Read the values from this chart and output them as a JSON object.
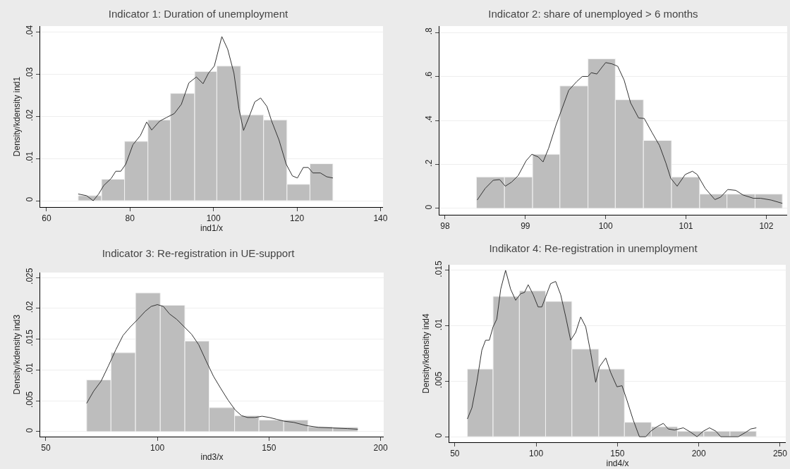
{
  "chart_data": [
    {
      "type": "histogram",
      "title": "Indicator 1: Duration of unemployment",
      "xlabel": "ind1/x",
      "ylabel": "Density/kdensity ind1",
      "color": "#bdbdbd",
      "grid": "y",
      "bins": [
        67.6,
        73.2,
        78.7,
        84.3,
        89.7,
        95.5,
        100.8,
        106.5,
        112.0,
        117.6,
        123.1,
        128.6
      ],
      "values": [
        0.0012,
        0.0051,
        0.0141,
        0.0192,
        0.0255,
        0.0307,
        0.032,
        0.0204,
        0.0192,
        0.0039,
        0.0088
      ],
      "series": [
        {
          "type": "line",
          "color": "#333333",
          "x": [
            67.6,
            69.6,
            71.2,
            72.5,
            73.7,
            75.5,
            76.6,
            77.8,
            79.0,
            80.7,
            82.5,
            84.0,
            85.2,
            87.1,
            88.8,
            90.6,
            92.3,
            94.1,
            95.9,
            97.5,
            98.8,
            100.2,
            102.0,
            103.4,
            104.9,
            106.1,
            107.2,
            108.4,
            109.9,
            111.3,
            112.8,
            113.9,
            115.7,
            117.4,
            118.9,
            120.1,
            121.5,
            122.7,
            123.8,
            125.6,
            127.1,
            128.6
          ],
          "values": [
            0.0016,
            0.0012,
            0,
            0.0016,
            0.0036,
            0.0053,
            0.007,
            0.007,
            0.0087,
            0.0133,
            0.0155,
            0.0187,
            0.0168,
            0.0189,
            0.0198,
            0.0207,
            0.0229,
            0.028,
            0.0294,
            0.0278,
            0.0303,
            0.032,
            0.039,
            0.036,
            0.0303,
            0.0218,
            0.0167,
            0.0196,
            0.0235,
            0.0244,
            0.0224,
            0.019,
            0.0144,
            0.0087,
            0.0059,
            0.0054,
            0.0079,
            0.0079,
            0.0066,
            0.0066,
            0.0057,
            0.0054
          ]
        }
      ],
      "xlim": [
        58.5,
        140.6
      ],
      "xticks": [
        60,
        80,
        100,
        120,
        140
      ],
      "ylim": [
        -0.0015,
        0.0415
      ],
      "yticks": [
        {
          "value": 0,
          "label": "0"
        },
        {
          "value": 0.01,
          "label": ".01"
        },
        {
          "value": 0.02,
          "label": ".02"
        },
        {
          "value": 0.03,
          "label": ".03"
        },
        {
          "value": 0.04,
          "label": ".04"
        }
      ]
    },
    {
      "type": "histogram",
      "title": "Indicator 2: share of unemployed > 6 months",
      "color": "#bdbdbd",
      "grid": "y",
      "bins": [
        98.39,
        98.74,
        99.09,
        99.43,
        99.78,
        100.12,
        100.47,
        100.82,
        101.17,
        101.51,
        101.86,
        102.2
      ],
      "values": [
        0.143,
        0.143,
        0.246,
        0.557,
        0.68,
        0.494,
        0.309,
        0.143,
        0.065,
        0.065,
        0.065
      ],
      "series": [
        {
          "type": "line",
          "color": "#333333",
          "x": [
            98.4,
            98.5,
            98.6,
            98.68,
            98.75,
            98.83,
            98.91,
            99.01,
            99.08,
            99.16,
            99.22,
            99.29,
            99.38,
            99.46,
            99.54,
            99.64,
            99.71,
            99.78,
            99.82,
            99.89,
            99.95,
            100.0,
            100.08,
            100.15,
            100.23,
            100.31,
            100.41,
            100.48,
            100.58,
            100.67,
            100.75,
            100.81,
            100.89,
            100.99,
            101.08,
            101.14,
            101.24,
            101.36,
            101.43,
            101.52,
            101.62,
            101.71,
            101.84,
            101.93,
            102.06,
            102.2
          ],
          "values": [
            0.038,
            0.091,
            0.128,
            0.131,
            0.101,
            0.12,
            0.149,
            0.217,
            0.246,
            0.234,
            0.211,
            0.274,
            0.377,
            0.457,
            0.537,
            0.577,
            0.6,
            0.6,
            0.617,
            0.611,
            0.64,
            0.663,
            0.657,
            0.646,
            0.583,
            0.48,
            0.411,
            0.409,
            0.343,
            0.286,
            0.206,
            0.137,
            0.101,
            0.154,
            0.169,
            0.154,
            0.091,
            0.04,
            0.051,
            0.086,
            0.082,
            0.061,
            0.046,
            0.046,
            0.038,
            0.023
          ]
        }
      ],
      "xlim": [
        97.93,
        102.26
      ],
      "xticks": [
        98,
        99,
        100,
        101,
        102
      ],
      "ylim": [
        -0.029,
        0.829
      ],
      "yticks": [
        {
          "value": 0,
          "label": "0"
        },
        {
          "value": 0.2,
          "label": ".2"
        },
        {
          "value": 0.4,
          "label": ".4"
        },
        {
          "value": 0.6,
          "label": ".6"
        },
        {
          "value": 0.8,
          "label": ".8"
        }
      ]
    },
    {
      "type": "histogram",
      "title": "Indicator 3: Re-registration in UE-support",
      "xlabel": "ind3/x",
      "ylabel": "Density/kdensity ind3",
      "color": "#bdbdbd",
      "grid": "y",
      "bins": [
        68.3,
        79.2,
        90.2,
        101.3,
        112.3,
        123.2,
        134.6,
        145.5,
        156.6,
        167.5,
        178.6,
        189.8
      ],
      "values": [
        0.0084,
        0.0128,
        0.0225,
        0.0205,
        0.0147,
        0.0039,
        0.0026,
        0.0019,
        0.0019,
        0.0008,
        0.0007
      ],
      "series": [
        {
          "type": "line",
          "color": "#333333",
          "x": [
            68.3,
            71.5,
            74.8,
            78.1,
            81.4,
            84.6,
            87.9,
            91.2,
            94.5,
            97.2,
            100.0,
            102.7,
            105.4,
            108.7,
            112.0,
            115.3,
            118.5,
            121.8,
            125.1,
            128.4,
            131.7,
            134.9,
            137.7,
            140.4,
            143.7,
            146.9,
            150.2,
            153.5,
            156.8,
            161.2,
            166.6,
            172.1,
            178.6,
            185.2,
            189.8
          ],
          "values": [
            0.0046,
            0.0066,
            0.0082,
            0.0107,
            0.0133,
            0.0156,
            0.017,
            0.0182,
            0.0195,
            0.0203,
            0.0206,
            0.0203,
            0.0191,
            0.0182,
            0.017,
            0.0158,
            0.0141,
            0.0115,
            0.009,
            0.007,
            0.0051,
            0.0035,
            0.0026,
            0.0023,
            0.0023,
            0.0025,
            0.0023,
            0.002,
            0.0017,
            0.0015,
            0.001,
            0.0007,
            0.0006,
            0.0005,
            0.0004
          ]
        }
      ],
      "xlim": [
        47.5,
        201.4
      ],
      "xticks": [
        50,
        100,
        150,
        200
      ],
      "ylim": [
        -0.0008,
        0.0258
      ],
      "yticks": [
        {
          "value": 0,
          "label": "0"
        },
        {
          "value": 0.005,
          "label": ".005"
        },
        {
          "value": 0.01,
          "label": ".01"
        },
        {
          "value": 0.015,
          "label": ".015"
        },
        {
          "value": 0.02,
          "label": ".02"
        },
        {
          "value": 0.025,
          "label": ".025"
        }
      ]
    },
    {
      "type": "histogram",
      "title": "Indikator 4: Re-registration in unemployment",
      "xlabel": "ind4/x",
      "ylabel": "Density/kdensity ind4",
      "color": "#bdbdbd",
      "grid": "y",
      "bins": [
        57.7,
        73.5,
        89.7,
        105.8,
        122.0,
        138.5,
        154.3,
        170.8,
        186.9,
        203.1,
        219.2,
        235.4
      ],
      "values": [
        0.0061,
        0.01265,
        0.01315,
        0.0122,
        0.0079,
        0.0061,
        0.0013,
        0.0009,
        0.0005,
        0.0005,
        0.0005
      ],
      "series": [
        {
          "type": "line",
          "color": "#333333",
          "x": [
            57.7,
            60.5,
            63.5,
            66.6,
            68.9,
            71.2,
            73.5,
            75.8,
            78.2,
            81.2,
            84.3,
            87.4,
            90.5,
            92.8,
            95.1,
            98.2,
            101.2,
            103.5,
            105.8,
            108.9,
            112.0,
            115.1,
            118.2,
            121.2,
            124.3,
            127.4,
            130.5,
            133.5,
            136.6,
            138.9,
            142.8,
            145.8,
            149.7,
            152.8,
            155.8,
            159.7,
            163.5,
            167.4,
            170.5,
            174.3,
            178.2,
            181.2,
            185.1,
            190.5,
            195.1,
            198.9,
            202.8,
            206.6,
            210.5,
            213.5,
            224.3,
            228.9,
            232.0,
            235.4
          ],
          "values": [
            0.0016,
            0.0026,
            0.0049,
            0.0078,
            0.0087,
            0.0087,
            0.0099,
            0.0106,
            0.0133,
            0.015,
            0.0133,
            0.0123,
            0.0129,
            0.013,
            0.0137,
            0.0128,
            0.0117,
            0.0117,
            0.0126,
            0.0138,
            0.014,
            0.0128,
            0.0108,
            0.0087,
            0.0094,
            0.0108,
            0.0099,
            0.0076,
            0.0049,
            0.0063,
            0.0071,
            0.0058,
            0.0045,
            0.0046,
            0.0033,
            0.0015,
            0,
            0,
            0.0005,
            0.0009,
            0.0012,
            0.0007,
            0.0006,
            0.0008,
            0.0004,
            0,
            0.0005,
            0.0008,
            0.0005,
            0,
            0,
            0.0004,
            0.0007,
            0.0008
          ]
        }
      ],
      "xlim": [
        46.6,
        253.5
      ],
      "xticks": [
        50,
        100,
        150,
        200,
        250
      ],
      "ylim": [
        -0.0005,
        0.0155
      ],
      "yticks": [
        {
          "value": 0,
          "label": "0"
        },
        {
          "value": 0.005,
          "label": ".005"
        },
        {
          "value": 0.01,
          "label": ".01"
        },
        {
          "value": 0.015,
          "label": ".015"
        }
      ]
    }
  ]
}
